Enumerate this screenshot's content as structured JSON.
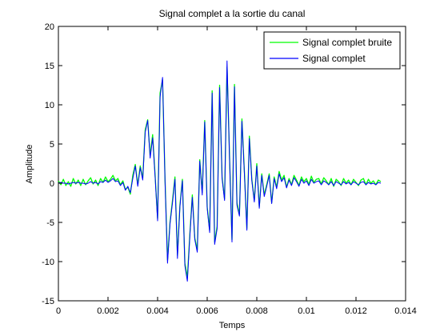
{
  "chart_data": {
    "type": "line",
    "title": "Signal complet a la sortie du canal",
    "xlabel": "Temps",
    "ylabel": "Amplitude",
    "xlim": [
      0,
      0.014
    ],
    "ylim": [
      -15,
      20
    ],
    "xticks": [
      0,
      0.002,
      0.004,
      0.006,
      0.008,
      0.01,
      0.012,
      0.014
    ],
    "xtick_labels": [
      "0",
      "0.002",
      "0.004",
      "0.006",
      "0.008",
      "0.01",
      "0.012",
      "0.014"
    ],
    "yticks": [
      -15,
      -10,
      -5,
      0,
      5,
      10,
      15,
      20
    ],
    "ytick_labels": [
      "-15",
      "-10",
      "-5",
      "0",
      "5",
      "10",
      "15",
      "20"
    ],
    "grid": false,
    "legend_position": "top-right",
    "series": [
      {
        "name": "Signal complet bruite",
        "color": "#00ff00",
        "x": [
          0.0,
          0.0001,
          0.0002,
          0.0003,
          0.0004,
          0.0005,
          0.0006,
          0.0007,
          0.0008,
          0.0009,
          0.001,
          0.0011,
          0.0012,
          0.0013,
          0.0014,
          0.0015,
          0.0016,
          0.0017,
          0.0018,
          0.0019,
          0.002,
          0.0021,
          0.0022,
          0.0023,
          0.0024,
          0.0025,
          0.0026,
          0.0027,
          0.0028,
          0.0029,
          0.003,
          0.0031,
          0.0032,
          0.0033,
          0.0034,
          0.0035,
          0.0036,
          0.0037,
          0.0038,
          0.0039,
          0.004,
          0.0041,
          0.0042,
          0.0043,
          0.0044,
          0.0045,
          0.0046,
          0.0047,
          0.0048,
          0.0049,
          0.005,
          0.0051,
          0.0052,
          0.0053,
          0.0054,
          0.0055,
          0.0056,
          0.0057,
          0.0058,
          0.0059,
          0.006,
          0.0061,
          0.0062,
          0.0063,
          0.0064,
          0.0065,
          0.0066,
          0.0067,
          0.0068,
          0.0069,
          0.007,
          0.0071,
          0.0072,
          0.0073,
          0.0074,
          0.0075,
          0.0076,
          0.0077,
          0.0078,
          0.0079,
          0.008,
          0.0081,
          0.0082,
          0.0083,
          0.0084,
          0.0085,
          0.0086,
          0.0087,
          0.0088,
          0.0089,
          0.009,
          0.0091,
          0.0092,
          0.0093,
          0.0094,
          0.0095,
          0.0096,
          0.0097,
          0.0098,
          0.0099,
          0.01,
          0.0101,
          0.0102,
          0.0103,
          0.0104,
          0.0105,
          0.0106,
          0.0107,
          0.0108,
          0.0109,
          0.011,
          0.0111,
          0.0112,
          0.0113,
          0.0114,
          0.0115,
          0.0116,
          0.0117,
          0.0118,
          0.0119,
          0.012,
          0.0121,
          0.0122,
          0.0123,
          0.0124,
          0.0125,
          0.0126,
          0.0127,
          0.0128,
          0.0129,
          0.013
        ],
        "y": [
          0.3,
          -0.2,
          0.5,
          -0.3,
          0.2,
          -0.4,
          0.6,
          -0.1,
          0.4,
          -0.3,
          0.5,
          -0.2,
          0.3,
          0.7,
          -0.1,
          0.4,
          -0.3,
          0.6,
          0.1,
          0.8,
          0.2,
          0.5,
          1.0,
          0.3,
          0.6,
          -0.2,
          0.3,
          -0.8,
          -0.5,
          -1.4,
          1.0,
          2.4,
          -0.2,
          2.2,
          0.6,
          6.8,
          8.1,
          3.5,
          6.2,
          1.0,
          -4.5,
          11.5,
          13.2,
          0.5,
          -9.8,
          -5.0,
          -2.2,
          0.8,
          -9.2,
          -2.8,
          0.5,
          -10.2,
          -12.0,
          -6.5,
          -1.5,
          -7.0,
          -8.5,
          3.0,
          -1.2,
          8.0,
          -3.0,
          -6.0,
          11.8,
          -7.5,
          -5.5,
          12.5,
          0.8,
          -2.0,
          14.8,
          3.5,
          -7.2,
          12.6,
          -2.5,
          -4.0,
          8.2,
          1.5,
          -5.8,
          6.0,
          0.5,
          -2.2,
          2.5,
          -3.0,
          1.2,
          -1.5,
          -0.2,
          1.2,
          -2.5,
          0.8,
          -0.5,
          1.5,
          0.4,
          1.0,
          -0.5,
          0.6,
          -0.2,
          1.0,
          0.4,
          -0.3,
          0.8,
          0.2,
          0.6,
          -0.2,
          0.9,
          0.1,
          0.5,
          0.6,
          -0.1,
          0.7,
          0.3,
          -0.2,
          0.6,
          -0.4,
          0.5,
          0.2,
          -0.3,
          0.6,
          0.0,
          0.4,
          -0.2,
          0.5,
          0.1,
          -0.3,
          0.4,
          0.6,
          -0.2,
          0.5,
          0.0,
          0.3,
          -0.2,
          0.4,
          0.2
        ]
      },
      {
        "name": "Signal complet",
        "color": "#0000ff",
        "x": [
          0.0,
          0.0001,
          0.0002,
          0.0003,
          0.0004,
          0.0005,
          0.0006,
          0.0007,
          0.0008,
          0.0009,
          0.001,
          0.0011,
          0.0012,
          0.0013,
          0.0014,
          0.0015,
          0.0016,
          0.0017,
          0.0018,
          0.0019,
          0.002,
          0.0021,
          0.0022,
          0.0023,
          0.0024,
          0.0025,
          0.0026,
          0.0027,
          0.0028,
          0.0029,
          0.003,
          0.0031,
          0.0032,
          0.0033,
          0.0034,
          0.0035,
          0.0036,
          0.0037,
          0.0038,
          0.0039,
          0.004,
          0.0041,
          0.0042,
          0.0043,
          0.0044,
          0.0045,
          0.0046,
          0.0047,
          0.0048,
          0.0049,
          0.005,
          0.0051,
          0.0052,
          0.0053,
          0.0054,
          0.0055,
          0.0056,
          0.0057,
          0.0058,
          0.0059,
          0.006,
          0.0061,
          0.0062,
          0.0063,
          0.0064,
          0.0065,
          0.0066,
          0.0067,
          0.0068,
          0.0069,
          0.007,
          0.0071,
          0.0072,
          0.0073,
          0.0074,
          0.0075,
          0.0076,
          0.0077,
          0.0078,
          0.0079,
          0.008,
          0.0081,
          0.0082,
          0.0083,
          0.0084,
          0.0085,
          0.0086,
          0.0087,
          0.0088,
          0.0089,
          0.009,
          0.0091,
          0.0092,
          0.0093,
          0.0094,
          0.0095,
          0.0096,
          0.0097,
          0.0098,
          0.0099,
          0.01,
          0.0101,
          0.0102,
          0.0103,
          0.0104,
          0.0105,
          0.0106,
          0.0107,
          0.0108,
          0.0109,
          0.011,
          0.0111,
          0.0112,
          0.0113,
          0.0114,
          0.0115,
          0.0116,
          0.0117,
          0.0118,
          0.0119,
          0.012,
          0.0121,
          0.0122,
          0.0123,
          0.0124,
          0.0125,
          0.0126,
          0.0127,
          0.0128,
          0.0129,
          0.013
        ],
        "y": [
          0.0,
          0.1,
          0.0,
          0.0,
          -0.1,
          0.0,
          0.1,
          0.0,
          0.1,
          0.0,
          0.0,
          -0.1,
          0.0,
          0.2,
          0.0,
          0.1,
          -0.1,
          0.2,
          0.1,
          0.4,
          0.1,
          0.3,
          0.6,
          0.2,
          0.3,
          -0.3,
          0.1,
          -0.9,
          -0.4,
          -1.2,
          0.6,
          2.2,
          -0.4,
          2.0,
          0.4,
          6.5,
          8.0,
          3.2,
          5.8,
          0.8,
          -4.8,
          11.0,
          13.5,
          0.2,
          -10.2,
          -5.2,
          -2.5,
          0.5,
          -9.6,
          -3.0,
          0.3,
          -10.5,
          -12.5,
          -6.8,
          -1.8,
          -7.2,
          -8.8,
          2.8,
          -1.5,
          7.8,
          -3.2,
          -6.3,
          11.5,
          -7.8,
          -5.8,
          12.2,
          0.6,
          -2.2,
          15.6,
          3.2,
          -7.5,
          12.3,
          -2.8,
          -4.2,
          7.9,
          1.2,
          -6.0,
          5.7,
          0.3,
          -2.4,
          2.2,
          -3.2,
          1.0,
          -1.7,
          -0.4,
          1.0,
          -2.6,
          0.6,
          -0.7,
          1.2,
          0.2,
          0.7,
          -0.6,
          0.4,
          -0.3,
          0.7,
          0.2,
          -0.4,
          0.5,
          0.0,
          0.3,
          -0.3,
          0.5,
          0.0,
          0.2,
          0.3,
          -0.2,
          0.3,
          0.1,
          -0.2,
          0.2,
          -0.3,
          0.2,
          0.0,
          -0.2,
          0.2,
          -0.1,
          0.1,
          -0.2,
          0.2,
          0.0,
          -0.2,
          0.1,
          0.2,
          -0.2,
          0.1,
          -0.1,
          0.0,
          -0.2,
          0.1,
          0.0
        ]
      }
    ]
  }
}
